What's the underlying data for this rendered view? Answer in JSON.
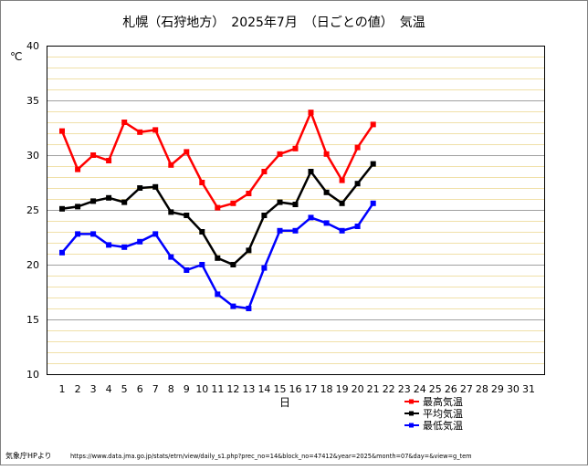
{
  "chart_data": {
    "type": "line",
    "title": "札幌（石狩地方）　2025年7月　（日ごとの値）　気温",
    "ylabel": "℃",
    "xlabel": "日",
    "ylim": [
      10,
      40
    ],
    "y_ticks": [
      10,
      15,
      20,
      25,
      30,
      35,
      40
    ],
    "x_categories": [
      "1",
      "2",
      "3",
      "4",
      "5",
      "6",
      "7",
      "8",
      "9",
      "10",
      "11",
      "12",
      "13",
      "14",
      "15",
      "16",
      "17",
      "18",
      "19",
      "20",
      "21",
      "22",
      "23",
      "24",
      "25",
      "26",
      "27",
      "28",
      "29",
      "30",
      "31"
    ],
    "grid": true,
    "legend_position": "bottom-right",
    "series": [
      {
        "name": "最高気温",
        "color": "#ff0000",
        "values": [
          32.2,
          28.7,
          30.0,
          29.5,
          33.0,
          32.1,
          32.3,
          29.1,
          30.3,
          27.5,
          25.2,
          25.6,
          26.5,
          28.5,
          30.1,
          30.6,
          33.9,
          30.1,
          27.7,
          30.7,
          32.8
        ]
      },
      {
        "name": "平均気温",
        "color": "#000000",
        "values": [
          25.1,
          25.3,
          25.8,
          26.1,
          25.7,
          27.0,
          27.1,
          24.8,
          24.5,
          23.0,
          20.6,
          20.0,
          21.3,
          24.5,
          25.7,
          25.5,
          28.5,
          26.6,
          25.6,
          27.4,
          29.2
        ]
      },
      {
        "name": "最低気温",
        "color": "#0000ff",
        "values": [
          21.1,
          22.8,
          22.8,
          21.8,
          21.6,
          22.1,
          22.8,
          20.7,
          19.5,
          20.0,
          17.3,
          16.2,
          16.0,
          19.7,
          23.1,
          23.1,
          24.3,
          23.8,
          23.1,
          23.5,
          25.6
        ]
      }
    ]
  },
  "footer": {
    "source": "気象庁HPより",
    "url": "https://www.data.jma.go.jp/stats/etrn/view/daily_s1.php?prec_no=14&block_no=47412&year=2025&month=07&day=&view=g_tem"
  }
}
